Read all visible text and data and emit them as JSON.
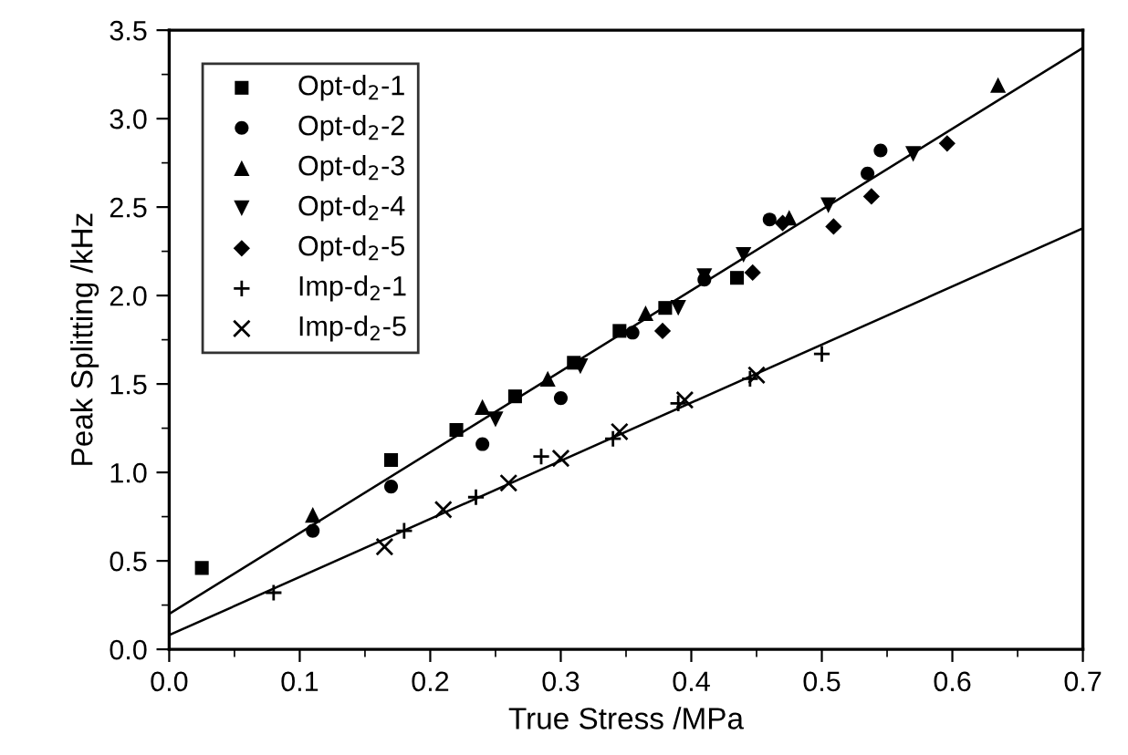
{
  "chart_data": {
    "type": "scatter",
    "xlabel": "True Stress /MPa",
    "ylabel": "Peak Splitting /kHz",
    "xlim": [
      0,
      0.7
    ],
    "ylim": [
      0,
      3.5
    ],
    "xticks": [
      {
        "value": 0,
        "label": "0.0"
      },
      0.1,
      0.2,
      0.3,
      0.4,
      0.5,
      0.6,
      0.7
    ],
    "yticks": [
      {
        "value": 0,
        "label": "0.0"
      },
      0.5,
      {
        "value": 1,
        "label": "1.0"
      },
      1.5,
      {
        "value": 2,
        "label": "2.0"
      },
      2.5,
      {
        "value": 3,
        "label": "3.0"
      },
      3.5
    ],
    "legend": "top left",
    "grid": false,
    "series": [
      {
        "name": "Opt-d$_{2}$-1",
        "color": "#000000",
        "marker": "square",
        "x": [
          0.025,
          0.17,
          0.22,
          0.265,
          0.31,
          0.345,
          0.38,
          0.435
        ],
        "values": [
          0.46,
          1.07,
          1.24,
          1.43,
          1.62,
          1.8,
          1.93,
          2.1
        ]
      },
      {
        "name": "Opt-d$_{2}$-2",
        "color": "#000000",
        "marker": "circle",
        "x": [
          0.11,
          0.17,
          0.24,
          0.3,
          0.355,
          0.41,
          0.46,
          0.535,
          0.545
        ],
        "values": [
          0.67,
          0.92,
          1.16,
          1.42,
          1.79,
          2.09,
          2.43,
          2.69,
          2.82
        ]
      },
      {
        "name": "Opt-d$_{2}$-3",
        "color": "#000000",
        "marker": "triangle",
        "x": [
          0.11,
          0.24,
          0.29,
          0.365,
          0.475,
          0.635
        ],
        "values": [
          0.76,
          1.37,
          1.53,
          1.9,
          2.44,
          3.19
        ]
      },
      {
        "name": "Opt-d$_{2}$-4",
        "color": "#000000",
        "marker": "triangle_down",
        "x": [
          0.25,
          0.315,
          0.39,
          0.41,
          0.44,
          0.505,
          0.57
        ],
        "values": [
          1.3,
          1.6,
          1.93,
          2.11,
          2.23,
          2.51,
          2.8
        ]
      },
      {
        "name": "Opt-d$_{2}$-5",
        "color": "#000000",
        "marker": "diamond",
        "x": [
          0.378,
          0.447,
          0.47,
          0.509,
          0.538,
          0.596
        ],
        "values": [
          1.8,
          2.13,
          2.41,
          2.39,
          2.56,
          2.86
        ]
      },
      {
        "name": "Imp-d$_{2}$-1",
        "color": "#000000",
        "marker": "plus",
        "x": [
          0.08,
          0.18,
          0.235,
          0.285,
          0.34,
          0.39,
          0.445,
          0.5
        ],
        "values": [
          0.32,
          0.67,
          0.86,
          1.09,
          1.19,
          1.39,
          1.53,
          1.67
        ]
      },
      {
        "name": "Imp-d$_{2}$-5",
        "color": "#000000",
        "marker": "cross",
        "x": [
          0.165,
          0.21,
          0.26,
          0.3,
          0.345,
          0.395,
          0.45
        ],
        "values": [
          0.58,
          0.79,
          0.94,
          1.08,
          1.23,
          1.41,
          1.55
        ]
      },
      {
        "type": "line",
        "color": "#000000",
        "marker": "none",
        "line_style": "solid",
        "x": [
          0,
          0.7
        ],
        "values": [
          0.2,
          3.4
        ]
      },
      {
        "type": "line",
        "color": "#000000",
        "marker": "none",
        "line_style": "solid",
        "x": [
          0,
          0.7
        ],
        "values": [
          0.08,
          2.38
        ]
      }
    ]
  }
}
